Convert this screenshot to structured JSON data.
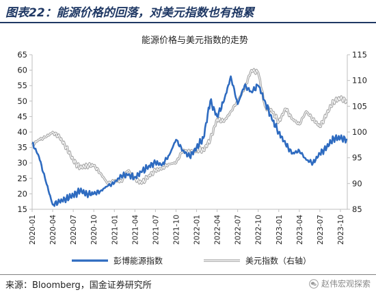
{
  "figure_title": "图表22：能源价格的回落，对美元指数也有拖累",
  "source_note": "来源：Bloomberg，国金证券研究所",
  "watermark": "赵伟宏观探索",
  "watermark_icon": "wechat-icon",
  "colors": {
    "title": "#1f3864",
    "energy_series": "#2e6bc0",
    "usd_series": "#a6a6a6"
  },
  "chart_data": {
    "type": "line",
    "title": "能源价格与美元指数的走势",
    "x_tick_labels": [
      "2020-01",
      "2020-04",
      "2020-07",
      "2020-10",
      "2021-01",
      "2021-04",
      "2021-07",
      "2021-10",
      "2022-01",
      "2022-04",
      "2022-07",
      "2022-10",
      "2023-01",
      "2023-04",
      "2023-07",
      "2023-10"
    ],
    "y_left": {
      "lim": [
        15,
        65
      ],
      "ticks": [
        15,
        20,
        25,
        30,
        35,
        40,
        45,
        50,
        55,
        60,
        65
      ]
    },
    "y_right": {
      "lim": [
        85,
        115
      ],
      "ticks": [
        85,
        90,
        95,
        100,
        105,
        110,
        115
      ]
    },
    "grid": false,
    "legend_position": "bottom",
    "series": [
      {
        "name": "彭博能源指数",
        "axis": "left",
        "points": [
          [
            "2020-01",
            36.5
          ],
          [
            "2020-02",
            32
          ],
          [
            "2020-03",
            24
          ],
          [
            "2020-04",
            16.5
          ],
          [
            "2020-05",
            17.5
          ],
          [
            "2020-06",
            18.5
          ],
          [
            "2020-07",
            19.5
          ],
          [
            "2020-08",
            21
          ],
          [
            "2020-09",
            20
          ],
          [
            "2020-10",
            20
          ],
          [
            "2020-11",
            21
          ],
          [
            "2020-12",
            22.5
          ],
          [
            "2021-01",
            23.5
          ],
          [
            "2021-02",
            26
          ],
          [
            "2021-03",
            26
          ],
          [
            "2021-04",
            25.5
          ],
          [
            "2021-05",
            27
          ],
          [
            "2021-06",
            29
          ],
          [
            "2021-07",
            30
          ],
          [
            "2021-08",
            29.5
          ],
          [
            "2021-09",
            32.5
          ],
          [
            "2021-10",
            37.5
          ],
          [
            "2021-11",
            34
          ],
          [
            "2021-12",
            32
          ],
          [
            "2022-01",
            35
          ],
          [
            "2022-02",
            38
          ],
          [
            "2022-03",
            50
          ],
          [
            "2022-04",
            45
          ],
          [
            "2022-05",
            50
          ],
          [
            "2022-06",
            58
          ],
          [
            "2022-07",
            49
          ],
          [
            "2022-08",
            55
          ],
          [
            "2022-09",
            53
          ],
          [
            "2022-10",
            55
          ],
          [
            "2022-11",
            50
          ],
          [
            "2022-12",
            44
          ],
          [
            "2023-01",
            40
          ],
          [
            "2023-02",
            36
          ],
          [
            "2023-03",
            33
          ],
          [
            "2023-04",
            34
          ],
          [
            "2023-05",
            31
          ],
          [
            "2023-06",
            30
          ],
          [
            "2023-07",
            33
          ],
          [
            "2023-08",
            35
          ],
          [
            "2023-09",
            38
          ],
          [
            "2023-10",
            38
          ],
          [
            "2023-11",
            37.5
          ]
        ]
      },
      {
        "name": "美元指数（右轴）",
        "axis": "right",
        "points": [
          [
            "2020-01",
            97.5
          ],
          [
            "2020-02",
            98.5
          ],
          [
            "2020-03",
            99
          ],
          [
            "2020-04",
            100
          ],
          [
            "2020-05",
            99
          ],
          [
            "2020-06",
            97
          ],
          [
            "2020-07",
            94.5
          ],
          [
            "2020-08",
            93
          ],
          [
            "2020-09",
            93.5
          ],
          [
            "2020-10",
            93.5
          ],
          [
            "2020-11",
            92
          ],
          [
            "2020-12",
            90
          ],
          [
            "2021-01",
            90.5
          ],
          [
            "2021-02",
            90.5
          ],
          [
            "2021-03",
            92.5
          ],
          [
            "2021-04",
            91
          ],
          [
            "2021-05",
            90
          ],
          [
            "2021-06",
            91.5
          ],
          [
            "2021-07",
            92.5
          ],
          [
            "2021-08",
            93
          ],
          [
            "2021-09",
            93.8
          ],
          [
            "2021-10",
            94
          ],
          [
            "2021-11",
            96.5
          ],
          [
            "2021-12",
            96
          ],
          [
            "2022-01",
            96.5
          ],
          [
            "2022-02",
            96.5
          ],
          [
            "2022-03",
            98.5
          ],
          [
            "2022-04",
            102.5
          ],
          [
            "2022-05",
            102
          ],
          [
            "2022-06",
            104
          ],
          [
            "2022-07",
            106
          ],
          [
            "2022-08",
            108.5
          ],
          [
            "2022-09",
            112
          ],
          [
            "2022-10",
            111.5
          ],
          [
            "2022-11",
            105
          ],
          [
            "2022-12",
            104
          ],
          [
            "2023-01",
            102
          ],
          [
            "2023-02",
            104.5
          ],
          [
            "2023-03",
            102.5
          ],
          [
            "2023-04",
            101.5
          ],
          [
            "2023-05",
            104
          ],
          [
            "2023-06",
            102.5
          ],
          [
            "2023-07",
            101
          ],
          [
            "2023-08",
            103.5
          ],
          [
            "2023-09",
            106
          ],
          [
            "2023-10",
            106.5
          ],
          [
            "2023-11",
            106
          ]
        ]
      }
    ]
  }
}
